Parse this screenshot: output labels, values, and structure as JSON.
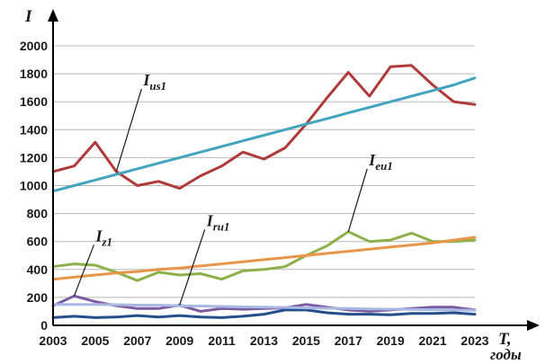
{
  "chart_data": {
    "type": "line",
    "ylabel": "I",
    "xlabel": "T,",
    "xlabel_unit": "годы",
    "ylim": [
      0,
      2000
    ],
    "yticks": [
      0,
      200,
      400,
      600,
      800,
      1000,
      1200,
      1400,
      1600,
      1800,
      2000
    ],
    "xlim": [
      2003,
      2023
    ],
    "xticks": [
      2003,
      2005,
      2007,
      2009,
      2011,
      2013,
      2015,
      2017,
      2019,
      2021,
      2023
    ],
    "grid": "horizontal",
    "x": [
      2003,
      2004,
      2005,
      2006,
      2007,
      2008,
      2009,
      2010,
      2011,
      2012,
      2013,
      2014,
      2015,
      2016,
      2017,
      2018,
      2019,
      2020,
      2021,
      2022,
      2023
    ],
    "series": [
      {
        "name": "I",
        "sub": "us1",
        "color": "#b03a3a",
        "values": [
          1100,
          1140,
          1310,
          1100,
          1000,
          1030,
          980,
          1070,
          1140,
          1240,
          1190,
          1270,
          1440,
          1630,
          1810,
          1640,
          1850,
          1860,
          1720,
          1600,
          1580
        ]
      },
      {
        "name": "",
        "sub": "",
        "color": "#44a3be",
        "values": [
          960,
          1000,
          1040,
          1080,
          1120,
          1160,
          1200,
          1240,
          1280,
          1320,
          1360,
          1400,
          1440,
          1480,
          1520,
          1560,
          1600,
          1640,
          1680,
          1720,
          1770
        ]
      },
      {
        "name": "I",
        "sub": "eu1",
        "color": "#8db04a",
        "values": [
          420,
          440,
          430,
          380,
          320,
          380,
          360,
          370,
          330,
          390,
          400,
          420,
          500,
          570,
          670,
          600,
          610,
          660,
          600,
          600,
          610
        ]
      },
      {
        "name": "",
        "sub": "",
        "color": "#e8954a",
        "values": [
          330,
          345,
          360,
          375,
          385,
          400,
          410,
          425,
          440,
          455,
          470,
          485,
          500,
          515,
          530,
          545,
          560,
          575,
          590,
          610,
          630
        ]
      },
      {
        "name": "I",
        "sub": "z1",
        "color": "#7b5aa0",
        "values": [
          140,
          210,
          170,
          140,
          120,
          120,
          145,
          100,
          120,
          115,
          120,
          125,
          150,
          130,
          110,
          100,
          110,
          120,
          130,
          130,
          110
        ]
      },
      {
        "name": "I",
        "sub": "ru1",
        "color": "#254f8c",
        "values": [
          55,
          65,
          55,
          60,
          70,
          60,
          70,
          60,
          55,
          65,
          80,
          110,
          110,
          90,
          80,
          80,
          75,
          85,
          85,
          90,
          80
        ]
      },
      {
        "name": "",
        "sub": "",
        "color": "#a9b8e3",
        "values": [
          150,
          150,
          150,
          148,
          145,
          145,
          140,
          138,
          135,
          132,
          130,
          128,
          125,
          122,
          120,
          118,
          116,
          114,
          112,
          110,
          108
        ]
      }
    ],
    "annotations": [
      {
        "name": "I",
        "sub": "us1",
        "series": 0,
        "at_x": 2006
      },
      {
        "name": "I",
        "sub": "eu1",
        "series": 2,
        "at_x": 2017
      },
      {
        "name": "I",
        "sub": "z1",
        "series": 4,
        "at_x": 2004
      },
      {
        "name": "I",
        "sub": "ru1",
        "series": 4,
        "at_x": 2009
      }
    ]
  }
}
